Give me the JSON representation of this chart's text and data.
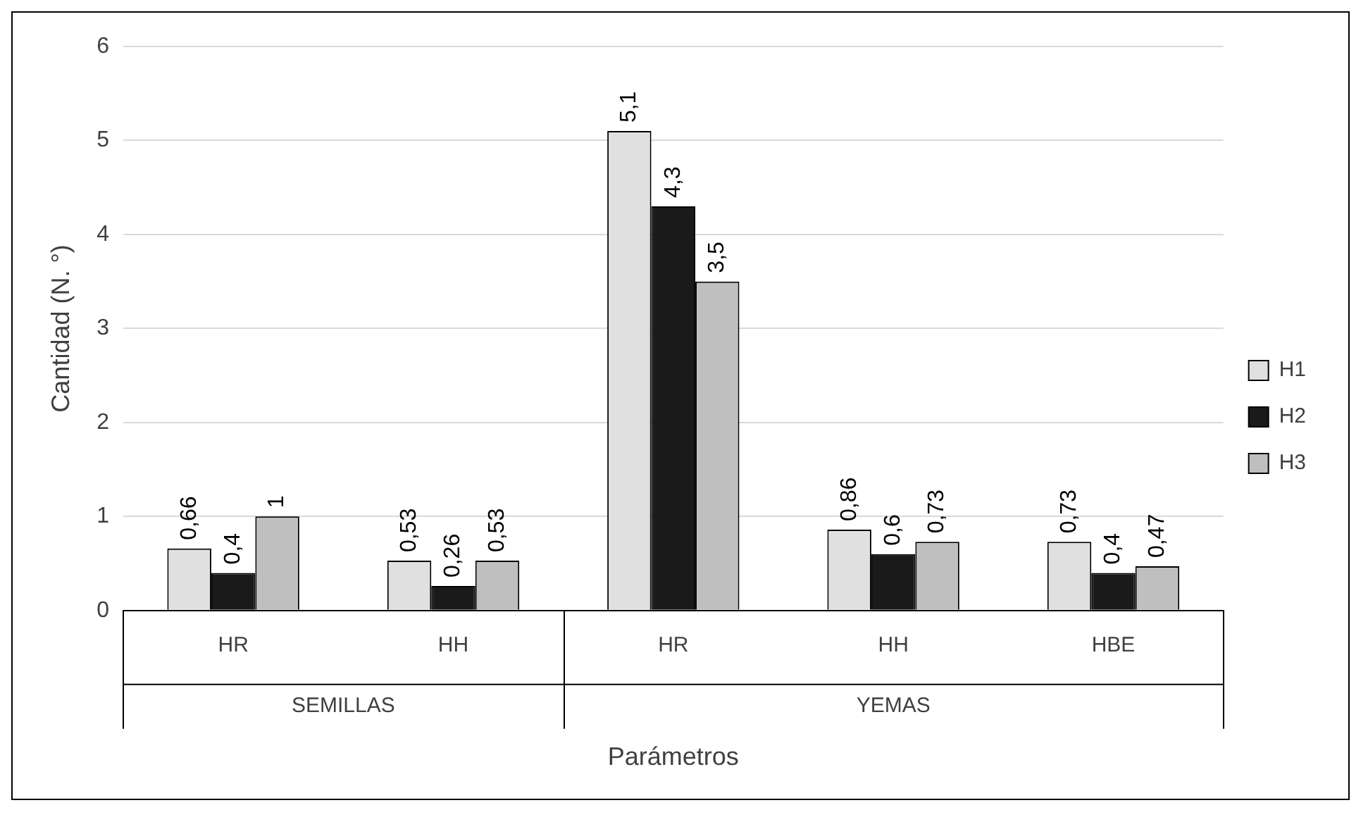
{
  "chart_data": {
    "type": "bar",
    "categories": [
      "HR",
      "HH",
      "HR",
      "HH",
      "HBE"
    ],
    "xlabel": "Parámetros",
    "ylabel": "Cantidad (N. °)",
    "annotations": [
      "SEMILLAS",
      "YEMAS"
    ],
    "series": [
      {
        "name": "H1",
        "color": "#e0e0e0",
        "values": [
          0.66,
          0.53,
          5.1,
          0.86,
          0.73
        ],
        "value_labels": [
          "0,66",
          "0,53",
          "5,1",
          "0,86",
          "0,73"
        ]
      },
      {
        "name": "H2",
        "color": "#1a1a1a",
        "values": [
          0.4,
          0.26,
          4.3,
          0.6,
          0.4
        ],
        "value_labels": [
          "0,4",
          "0,26",
          "4,3",
          "0,6",
          "0,4"
        ]
      },
      {
        "name": "H3",
        "color": "#bfbfbf",
        "values": [
          1,
          0.53,
          3.5,
          0.73,
          0.47
        ],
        "value_labels": [
          "1",
          "0,53",
          "3,5",
          "0,73",
          "0,47"
        ]
      }
    ],
    "ylim": [
      0,
      6
    ],
    "yticks": [
      0,
      1,
      2,
      3,
      4,
      5,
      6
    ],
    "grid": "y",
    "legend": "right"
  }
}
